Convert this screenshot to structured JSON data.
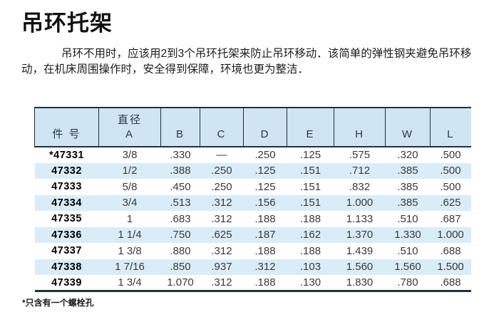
{
  "page": {
    "title": "吊环托架",
    "intro": "吊环不用时，应该用2到3个吊环托架来防止吊环移动．该简单的弹性钢夹避免吊环移动，在机床周围操作时，安全得到保障，环境也更为整洁．",
    "footnote": "*只含有一个螺栓孔"
  },
  "colors": {
    "header_bg": "#cfe5f2",
    "stripe_bg": "#daecf8",
    "border_dark": "#22303b",
    "text_data": "#3a3a3a",
    "text_header": "#2c3945"
  },
  "table": {
    "columns": [
      "件 号",
      "直径\nA",
      "B",
      "C",
      "D",
      "E",
      "H",
      "W",
      "L"
    ],
    "rows": [
      [
        "*47331",
        "3/8",
        ".330",
        "—",
        ".250",
        ".125",
        ".575",
        ".320",
        ".500"
      ],
      [
        "47332",
        "1/2",
        ".388",
        ".250",
        ".125",
        ".151",
        ".712",
        ".385",
        ".500"
      ],
      [
        "47333",
        "5/8",
        ".450",
        ".250",
        ".125",
        ".151",
        ".832",
        ".385",
        ".500"
      ],
      [
        "47334",
        "3/4",
        ".513",
        ".312",
        ".156",
        ".151",
        "1.000",
        ".385",
        ".625"
      ],
      [
        "47335",
        "1",
        ".683",
        ".312",
        ".188",
        ".188",
        "1.133",
        ".510",
        ".687"
      ],
      [
        "47336",
        "1 1/4",
        ".750",
        ".625",
        ".187",
        ".162",
        "1.370",
        "1.330",
        "1.000"
      ],
      [
        "47337",
        "1 3/8",
        ".880",
        ".312",
        ".188",
        ".188",
        "1.439",
        ".510",
        ".688"
      ],
      [
        "47338",
        "1 7/16",
        ".850",
        ".937",
        ".312",
        ".103",
        "1.560",
        "1.560",
        "1.500"
      ],
      [
        "47339",
        "1 3/4",
        "1.070",
        ".312",
        ".188",
        ".130",
        "1.830",
        ".780",
        ".688"
      ]
    ]
  }
}
